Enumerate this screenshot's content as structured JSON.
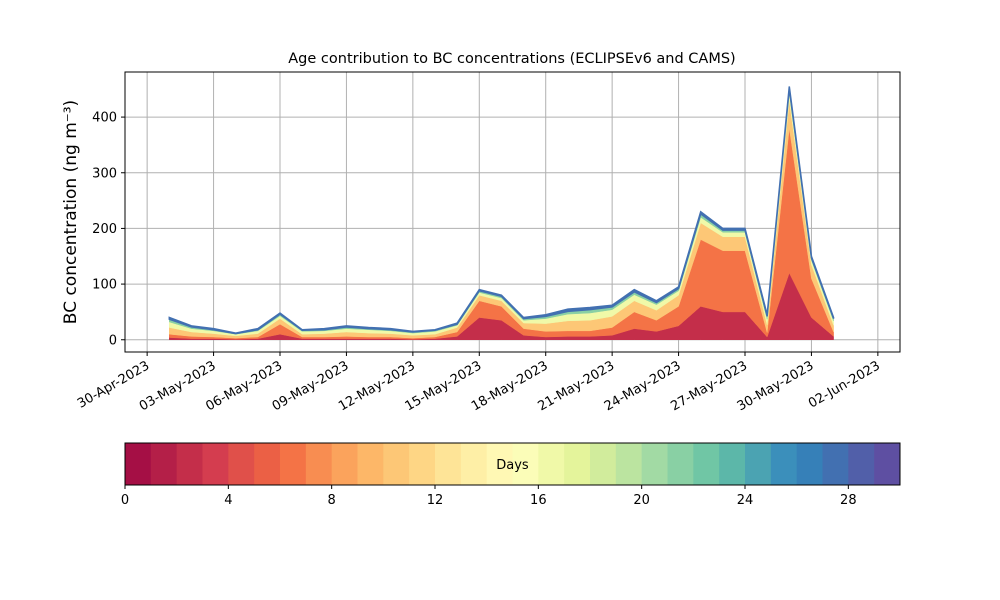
{
  "chart_data": {
    "type": "stacked_area",
    "title": "Age contribution to BC concentrations (ECLIPSEv6 and CAMS)",
    "y_label": "BC concentration (ng m⁻³)",
    "x": [
      "2023-05-01",
      "2023-05-02",
      "2023-05-03",
      "2023-05-04",
      "2023-05-05",
      "2023-05-06",
      "2023-05-07",
      "2023-05-08",
      "2023-05-09",
      "2023-05-10",
      "2023-05-11",
      "2023-05-12",
      "2023-05-13",
      "2023-05-14",
      "2023-05-15",
      "2023-05-16",
      "2023-05-17",
      "2023-05-18",
      "2023-05-19",
      "2023-05-20",
      "2023-05-21",
      "2023-05-22",
      "2023-05-23",
      "2023-05-24",
      "2023-05-25",
      "2023-05-26",
      "2023-05-27",
      "2023-05-28",
      "2023-05-29",
      "2023-05-30",
      "2023-05-31"
    ],
    "series": [
      {
        "color": "#c42e4a",
        "values": [
          4,
          2,
          2,
          1,
          2,
          10,
          2,
          2,
          2,
          2,
          2,
          1,
          2,
          6,
          40,
          35,
          8,
          5,
          6,
          6,
          8,
          20,
          15,
          25,
          60,
          50,
          50,
          5,
          120,
          40,
          6
        ]
      },
      {
        "color": "#f47346",
        "values": [
          6,
          4,
          3,
          2,
          3,
          18,
          3,
          3,
          4,
          3,
          3,
          2,
          3,
          8,
          30,
          25,
          12,
          10,
          10,
          10,
          14,
          30,
          20,
          35,
          120,
          110,
          110,
          8,
          260,
          70,
          8
        ]
      },
      {
        "color": "#fdc776",
        "values": [
          12,
          8,
          6,
          4,
          6,
          10,
          5,
          6,
          8,
          7,
          6,
          5,
          5,
          8,
          10,
          10,
          10,
          14,
          18,
          19,
          20,
          20,
          18,
          20,
          30,
          25,
          25,
          14,
          50,
          25,
          12
        ]
      },
      {
        "color": "#f0f9a8",
        "values": [
          10,
          6,
          5,
          3,
          5,
          5,
          5,
          5,
          6,
          6,
          5,
          4,
          5,
          4,
          5,
          5,
          5,
          9,
          12,
          13,
          12,
          11,
          10,
          8,
          10,
          8,
          8,
          10,
          15,
          8,
          8
        ]
      },
      {
        "color": "#89d0a4",
        "values": [
          5,
          3,
          2,
          1,
          2,
          3,
          2,
          2,
          3,
          2,
          2,
          2,
          2,
          2,
          3,
          3,
          3,
          4,
          5,
          6,
          5,
          5,
          4,
          4,
          6,
          4,
          4,
          5,
          6,
          4,
          4
        ]
      },
      {
        "color": "#4270b1",
        "values": [
          3,
          2,
          2,
          1,
          2,
          2,
          1,
          2,
          2,
          2,
          2,
          1,
          1,
          2,
          2,
          2,
          2,
          3,
          4,
          4,
          3,
          4,
          3,
          3,
          4,
          3,
          3,
          3,
          4,
          3,
          2
        ]
      }
    ],
    "xlim": [
      "2023-04-29",
      "2023-06-03"
    ],
    "xticks": [
      {
        "value": "2023-04-30",
        "label": "30-Apr-2023"
      },
      {
        "value": "2023-05-03",
        "label": "03-May-2023"
      },
      {
        "value": "2023-05-06",
        "label": "06-May-2023"
      },
      {
        "value": "2023-05-09",
        "label": "09-May-2023"
      },
      {
        "value": "2023-05-12",
        "label": "12-May-2023"
      },
      {
        "value": "2023-05-15",
        "label": "15-May-2023"
      },
      {
        "value": "2023-05-18",
        "label": "18-May-2023"
      },
      {
        "value": "2023-05-21",
        "label": "21-May-2023"
      },
      {
        "value": "2023-05-24",
        "label": "24-May-2023"
      },
      {
        "value": "2023-05-27",
        "label": "27-May-2023"
      },
      {
        "value": "2023-05-30",
        "label": "30-May-2023"
      },
      {
        "value": "2023-06-02",
        "label": "02-Jun-2023"
      }
    ],
    "ylim": [
      -22,
      481
    ],
    "yticks": [
      0,
      100,
      200,
      300,
      400
    ],
    "grid": true,
    "colorbar": {
      "label": "Days",
      "lim": [
        0,
        30
      ],
      "ticks": [
        0,
        4,
        8,
        12,
        16,
        20,
        24,
        28
      ],
      "colors": [
        "#a50f45",
        "#b41f48",
        "#c42e4a",
        "#d43d4f",
        "#e0504a",
        "#eb6045",
        "#f47346",
        "#f88d51",
        "#fba35c",
        "#fdb768",
        "#fdc776",
        "#fed685",
        "#fee497",
        "#feefa6",
        "#fff8b4",
        "#fbfdb8",
        "#f0f9a8",
        "#e4f49b",
        "#d1ec9c",
        "#bbe4a0",
        "#a2daa4",
        "#89d0a4",
        "#70c6a5",
        "#5cb7a9",
        "#4ba3b2",
        "#3b8fbb",
        "#3680b8",
        "#4270b1",
        "#515fa9",
        "#5e4fa2"
      ]
    }
  }
}
